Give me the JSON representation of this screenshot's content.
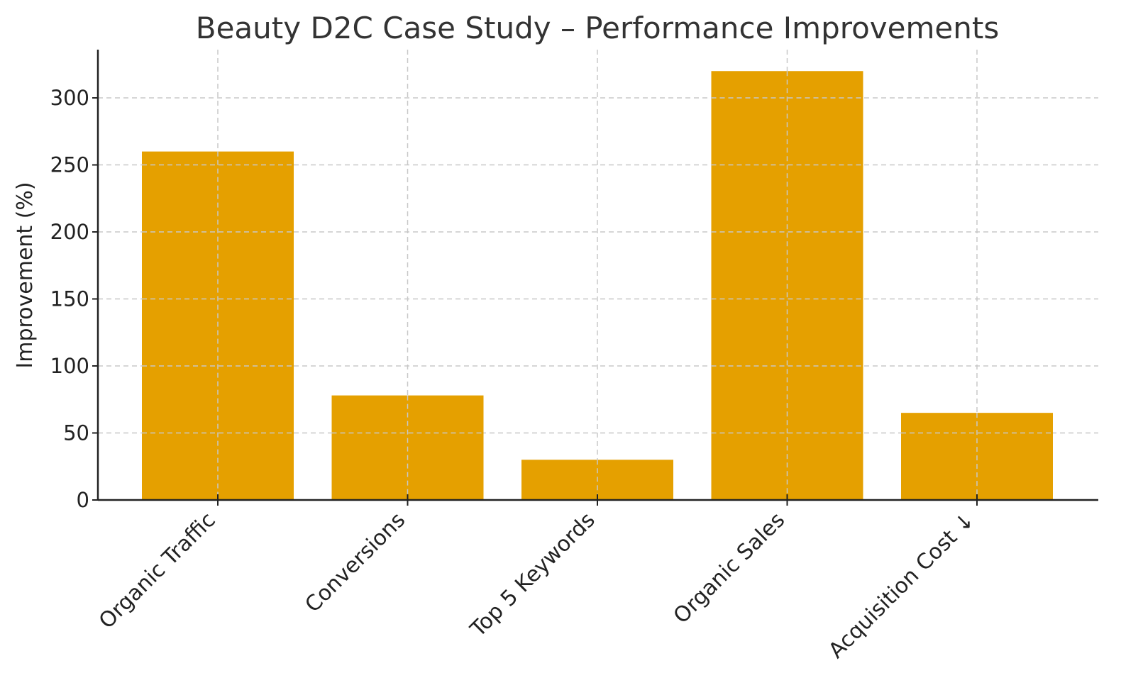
{
  "chart_data": {
    "type": "bar",
    "title": "Beauty D2C Case Study – Performance Improvements",
    "xlabel": "",
    "ylabel": "Improvement (%)",
    "categories": [
      "Organic Traffic",
      "Conversions",
      "Top 5 Keywords",
      "Organic Sales",
      "Acquisition Cost ↓"
    ],
    "values": [
      260,
      78,
      30,
      320,
      65
    ],
    "ylim": [
      0,
      336
    ],
    "yticks": [
      0,
      50,
      100,
      150,
      200,
      250,
      300
    ],
    "grid": true,
    "bar_color": "#E5A000"
  }
}
